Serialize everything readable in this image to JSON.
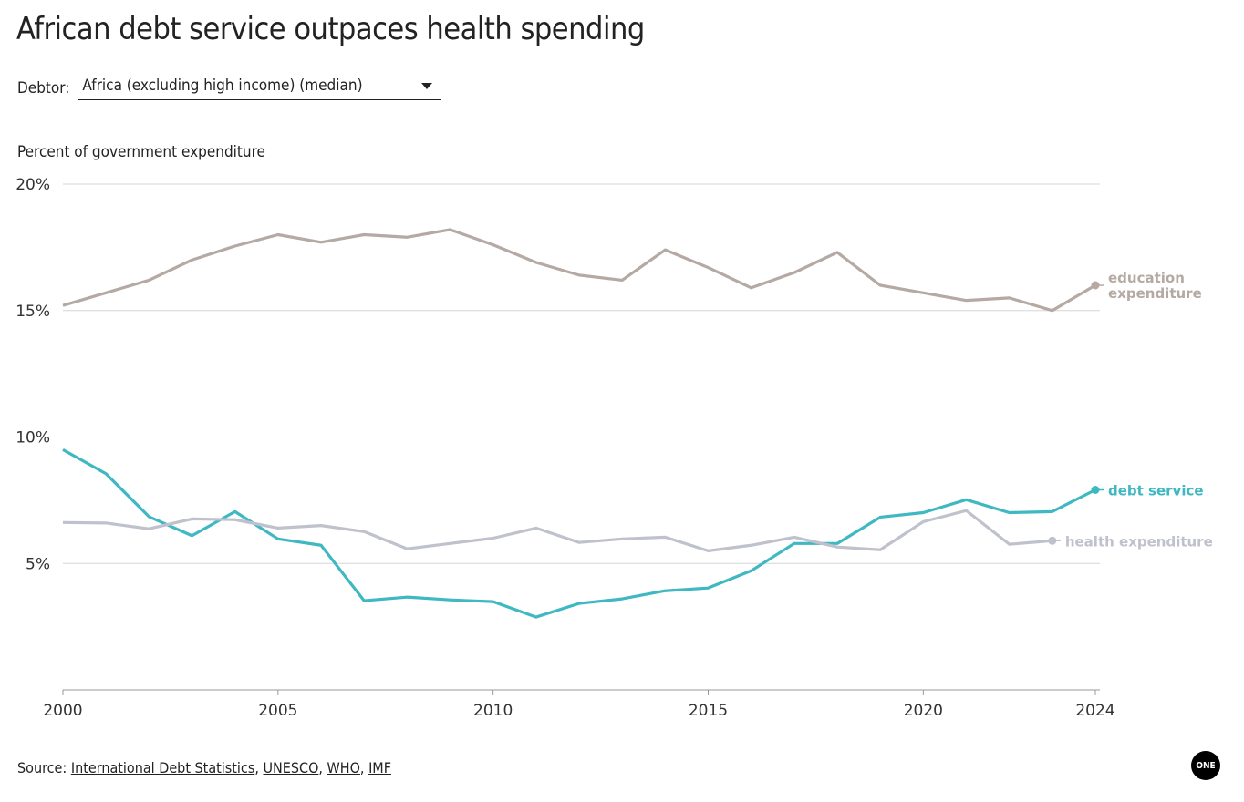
{
  "title": "African debt service outpaces health spending",
  "selector": {
    "label": "Debtor:",
    "value": "Africa (excluding high income) (median)"
  },
  "source": {
    "prefix": "Source: ",
    "links": [
      "International Debt Statistics",
      "UNESCO",
      "WHO",
      "IMF"
    ]
  },
  "logo": "ONE",
  "chart_data": {
    "type": "line",
    "title": "African debt service outpaces health spending",
    "ylabel": "Percent of government expenditure",
    "xlabel": "",
    "ylim": [
      0,
      20
    ],
    "xlim": [
      2000,
      2024
    ],
    "yticks": [
      {
        "v": 5,
        "label": "5%"
      },
      {
        "v": 10,
        "label": "10%"
      },
      {
        "v": 15,
        "label": "15%"
      },
      {
        "v": 20,
        "label": "20%"
      }
    ],
    "xticks": [
      2000,
      2005,
      2010,
      2015,
      2020,
      2024
    ],
    "grid": true,
    "x": [
      2000,
      2001,
      2002,
      2003,
      2004,
      2005,
      2006,
      2007,
      2008,
      2009,
      2010,
      2011,
      2012,
      2013,
      2014,
      2015,
      2016,
      2017,
      2018,
      2019,
      2020,
      2021,
      2022,
      2023,
      2024
    ],
    "series": [
      {
        "name": "education expenditure",
        "label": [
          "education",
          "expenditure"
        ],
        "color": "#b5a9a3",
        "values": [
          15.2,
          15.7,
          16.2,
          17.0,
          17.55,
          18.0,
          17.7,
          18.0,
          17.9,
          18.2,
          17.6,
          16.9,
          16.4,
          16.2,
          17.4,
          16.7,
          15.9,
          16.5,
          17.3,
          16.0,
          15.7,
          15.4,
          15.5,
          15.0,
          16.0
        ]
      },
      {
        "name": "debt service",
        "label": [
          "debt service"
        ],
        "color": "#3fb8c2",
        "values": [
          9.5,
          8.55,
          6.85,
          6.1,
          7.05,
          5.97,
          5.72,
          3.53,
          3.67,
          3.56,
          3.49,
          2.88,
          3.42,
          3.6,
          3.92,
          4.03,
          4.71,
          5.79,
          5.79,
          6.83,
          7.01,
          7.52,
          7.01,
          7.05,
          7.91
        ]
      },
      {
        "name": "health expenditure",
        "label": [
          "health expenditure"
        ],
        "color": "#bfc1cc",
        "values": [
          6.62,
          6.6,
          6.37,
          6.76,
          6.73,
          6.4,
          6.5,
          6.26,
          5.58,
          5.79,
          6.0,
          6.4,
          5.83,
          5.97,
          6.04,
          5.5,
          5.72,
          6.04,
          5.65,
          5.54,
          6.65,
          7.09,
          5.76,
          5.9,
          null
        ]
      }
    ]
  }
}
